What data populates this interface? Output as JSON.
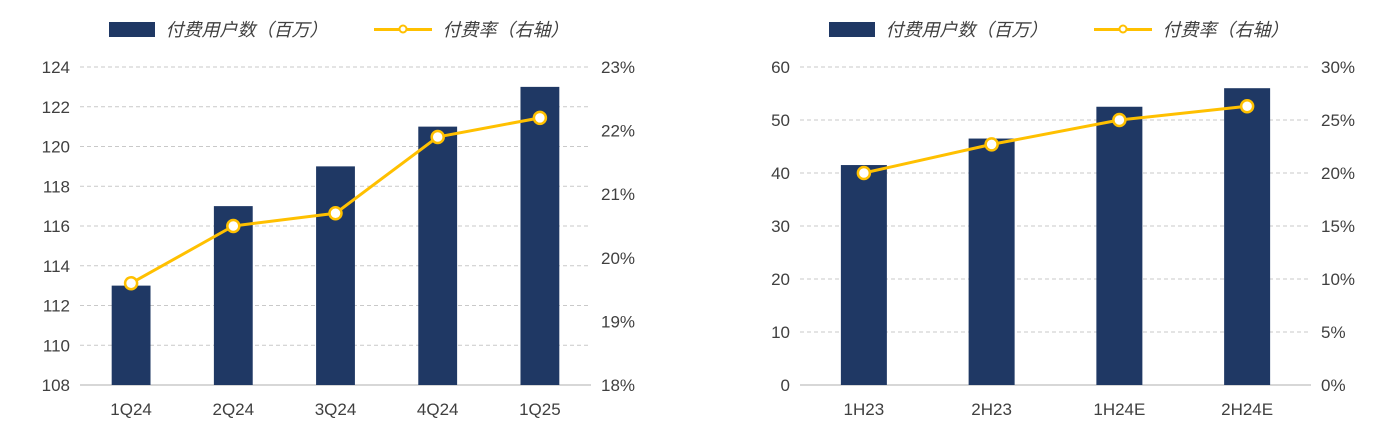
{
  "colors": {
    "bar": "#1F3864",
    "line": "#FFC000",
    "marker_fill": "#FFFFFF",
    "grid": "#C9C9C9",
    "axis_line": "#BFBFBF",
    "text": "#404040",
    "background": "#FFFFFF"
  },
  "chart_data": [
    {
      "type": "bar",
      "subtype": "bar-plus-line-dual-axis",
      "title": "",
      "categories": [
        "1Q24",
        "2Q24",
        "3Q24",
        "4Q24",
        "1Q25"
      ],
      "series": [
        {
          "name": "付费用户数（百万）",
          "type": "bar",
          "axis": "left",
          "values": [
            113,
            117,
            119,
            121,
            123
          ]
        },
        {
          "name": "付费率（右轴）",
          "type": "line",
          "axis": "right",
          "values": [
            19.6,
            20.5,
            20.7,
            21.9,
            22.2
          ]
        }
      ],
      "left_axis": {
        "min": 108,
        "max": 124,
        "step": 2,
        "ticks": [
          "108",
          "110",
          "112",
          "114",
          "116",
          "118",
          "120",
          "122",
          "124"
        ]
      },
      "right_axis": {
        "min": 18,
        "max": 23,
        "step": 1,
        "ticks": [
          "18%",
          "19%",
          "20%",
          "21%",
          "22%",
          "23%"
        ]
      },
      "legend_position": "top",
      "grid": "dashed-horizontal"
    },
    {
      "type": "bar",
      "subtype": "bar-plus-line-dual-axis",
      "title": "",
      "categories": [
        "1H23",
        "2H23",
        "1H24E",
        "2H24E"
      ],
      "series": [
        {
          "name": "付费用户数（百万）",
          "type": "bar",
          "axis": "left",
          "values": [
            41.5,
            46.5,
            52.5,
            56
          ]
        },
        {
          "name": "付费率（右轴）",
          "type": "line",
          "axis": "right",
          "values": [
            20,
            22.7,
            25,
            26.3
          ]
        }
      ],
      "left_axis": {
        "min": 0,
        "max": 60,
        "step": 10,
        "ticks": [
          "0",
          "10",
          "20",
          "30",
          "40",
          "50",
          "60"
        ]
      },
      "right_axis": {
        "min": 0,
        "max": 30,
        "step": 5,
        "ticks": [
          "0%",
          "5%",
          "10%",
          "15%",
          "20%",
          "25%",
          "30%"
        ]
      },
      "legend_position": "top",
      "grid": "dashed-horizontal"
    }
  ]
}
